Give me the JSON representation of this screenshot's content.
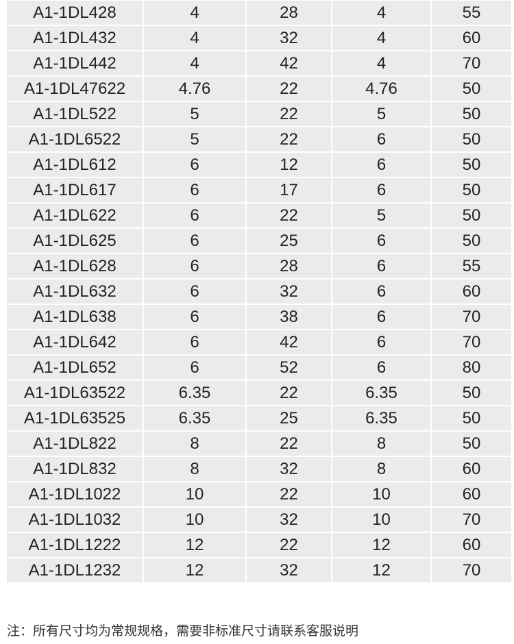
{
  "table": {
    "rows": [
      [
        "A1-1DL428",
        "4",
        "28",
        "4",
        "55"
      ],
      [
        "A1-1DL432",
        "4",
        "32",
        "4",
        "60"
      ],
      [
        "A1-1DL442",
        "4",
        "42",
        "4",
        "70"
      ],
      [
        "A1-1DL47622",
        "4.76",
        "22",
        "4.76",
        "50"
      ],
      [
        "A1-1DL522",
        "5",
        "22",
        "5",
        "50"
      ],
      [
        "A1-1DL6522",
        "5",
        "22",
        "6",
        "50"
      ],
      [
        "A1-1DL612",
        "6",
        "12",
        "6",
        "50"
      ],
      [
        "A1-1DL617",
        "6",
        "17",
        "6",
        "50"
      ],
      [
        "A1-1DL622",
        "6",
        "22",
        "5",
        "50"
      ],
      [
        "A1-1DL625",
        "6",
        "25",
        "6",
        "50"
      ],
      [
        "A1-1DL628",
        "6",
        "28",
        "6",
        "55"
      ],
      [
        "A1-1DL632",
        "6",
        "32",
        "6",
        "60"
      ],
      [
        "A1-1DL638",
        "6",
        "38",
        "6",
        "70"
      ],
      [
        "A1-1DL642",
        "6",
        "42",
        "6",
        "70"
      ],
      [
        "A1-1DL652",
        "6",
        "52",
        "6",
        "80"
      ],
      [
        "A1-1DL63522",
        "6.35",
        "22",
        "6.35",
        "50"
      ],
      [
        "A1-1DL63525",
        "6.35",
        "25",
        "6.35",
        "50"
      ],
      [
        "A1-1DL822",
        "8",
        "22",
        "8",
        "50"
      ],
      [
        "A1-1DL832",
        "8",
        "32",
        "8",
        "60"
      ],
      [
        "A1-1DL1022",
        "10",
        "22",
        "10",
        "60"
      ],
      [
        "A1-1DL1032",
        "10",
        "32",
        "10",
        "70"
      ],
      [
        "A1-1DL1222",
        "12",
        "22",
        "12",
        "60"
      ],
      [
        "A1-1DL1232",
        "12",
        "32",
        "12",
        "70"
      ]
    ]
  },
  "note": "注：所有尺寸均为常规规格，需要非标准尺寸请联系客服说明"
}
